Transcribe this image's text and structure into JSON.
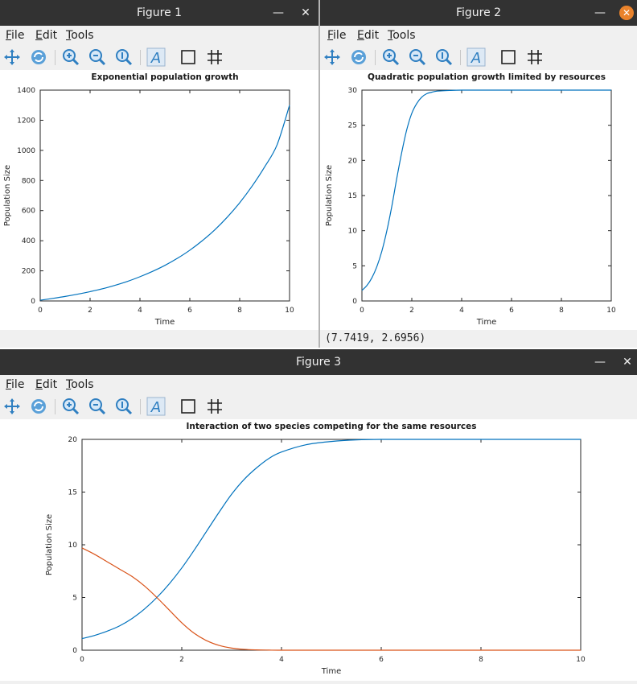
{
  "menu": {
    "file": "File",
    "edit": "Edit",
    "tools": "Tools"
  },
  "toolbar_icons": [
    "pan-icon",
    "rotate-icon",
    "zoom-in-icon",
    "zoom-out-icon",
    "zoom-reset-icon",
    "text-icon",
    "axes-box-icon",
    "grid-icon"
  ],
  "windows": [
    {
      "title": "Figure 1",
      "status": "",
      "chart_data": {
        "type": "line",
        "title": "Exponential population growth",
        "xlabel": "Time",
        "ylabel": "Population Size",
        "xlim": [
          0,
          10
        ],
        "ylim": [
          0,
          1400
        ],
        "xticks": [
          0,
          2,
          4,
          6,
          8,
          10
        ],
        "yticks": [
          0,
          200,
          400,
          600,
          800,
          1000,
          1200,
          1400
        ],
        "series": [
          {
            "color": "#0072bd",
            "x": [
              0,
              0.5,
              1,
              1.5,
              2,
              2.5,
              3,
              3.5,
              4,
              4.5,
              5,
              5.5,
              6,
              6.5,
              7,
              7.5,
              8,
              8.5,
              9,
              9.5,
              10
            ],
            "y": [
              5,
              17,
              30,
              45,
              62,
              81,
              104,
              130,
              161,
              196,
              236,
              283,
              337,
              400,
              472,
              556,
              652,
              763,
              890,
              1037,
              1300
            ]
          }
        ]
      }
    },
    {
      "title": "Figure 2",
      "status": "(7.7419, 2.6956)",
      "chart_data": {
        "type": "line",
        "title": "Quadratic population growth limited by resources",
        "xlabel": "Time",
        "ylabel": "Population Size",
        "xlim": [
          0,
          10
        ],
        "ylim": [
          0,
          30
        ],
        "xticks": [
          0,
          2,
          4,
          6,
          8,
          10
        ],
        "yticks": [
          0,
          5,
          10,
          15,
          20,
          25,
          30
        ],
        "series": [
          {
            "color": "#0072bd",
            "x": [
              0,
              0.2,
              0.4,
              0.6,
              0.8,
              1.0,
              1.2,
              1.4,
              1.6,
              1.8,
              2.0,
              2.2,
              2.4,
              2.6,
              2.8,
              3.0,
              3.5,
              4,
              5,
              6,
              7,
              8,
              9,
              10
            ],
            "y": [
              1.5,
              2.2,
              3.3,
              4.9,
              7.1,
              10.0,
              13.5,
              17.5,
              21.2,
              24.4,
              26.7,
              28.1,
              29.0,
              29.5,
              29.7,
              29.85,
              29.95,
              30,
              30,
              30,
              30,
              30,
              30,
              30
            ]
          }
        ]
      }
    },
    {
      "title": "Figure 3",
      "status": "",
      "chart_data": {
        "type": "line",
        "title": "Interaction of two species competing for the same resources",
        "xlabel": "Time",
        "ylabel": "Population Size",
        "xlim": [
          0,
          10
        ],
        "ylim": [
          0,
          20
        ],
        "xticks": [
          0,
          2,
          4,
          6,
          8,
          10
        ],
        "yticks": [
          0,
          5,
          10,
          15,
          20
        ],
        "series": [
          {
            "color": "#0072bd",
            "x": [
              0,
              0.25,
              0.5,
              0.75,
              1,
              1.25,
              1.5,
              1.75,
              2,
              2.25,
              2.5,
              2.75,
              3,
              3.25,
              3.5,
              3.75,
              4,
              4.5,
              5,
              5.5,
              6,
              7,
              8,
              9,
              10
            ],
            "y": [
              1.1,
              1.4,
              1.8,
              2.3,
              3.0,
              3.9,
              5.0,
              6.3,
              7.8,
              9.5,
              11.3,
              13.1,
              14.8,
              16.2,
              17.3,
              18.2,
              18.8,
              19.5,
              19.8,
              19.95,
              20,
              20,
              20,
              20,
              20
            ]
          },
          {
            "color": "#d95319",
            "x": [
              0,
              0.25,
              0.5,
              0.75,
              1,
              1.25,
              1.5,
              1.75,
              2,
              2.25,
              2.5,
              2.75,
              3,
              3.25,
              3.5,
              3.75,
              4,
              5,
              6,
              8,
              10
            ],
            "y": [
              9.7,
              9.1,
              8.4,
              7.7,
              7.0,
              6.1,
              5.0,
              3.8,
              2.6,
              1.6,
              0.9,
              0.45,
              0.2,
              0.08,
              0.03,
              0.01,
              0,
              0,
              0,
              0,
              0
            ]
          }
        ]
      }
    }
  ]
}
